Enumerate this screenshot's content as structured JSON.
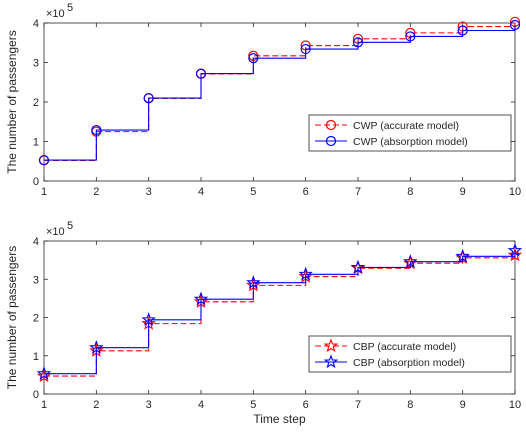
{
  "chart_data": [
    {
      "type": "line",
      "step": true,
      "x": [
        1,
        2,
        3,
        4,
        5,
        6,
        7,
        8,
        9,
        10
      ],
      "xlim": [
        1,
        10
      ],
      "ylim": [
        0,
        4
      ],
      "y_ticks": [
        0,
        1,
        2,
        3,
        4
      ],
      "y_exponent_label": "×10",
      "y_exponent_power": "5",
      "xlabel": "",
      "ylabel": "The number of passengers",
      "grid": false,
      "legend_position": "lower-right",
      "series": [
        {
          "name": "CWP (accurate model)",
          "color": "#ff0000",
          "line_style": "dashed",
          "marker": "circle",
          "values": [
            0.52,
            1.25,
            2.09,
            2.71,
            3.17,
            3.43,
            3.6,
            3.75,
            3.91,
            4.03
          ]
        },
        {
          "name": "CWP (absorption model)",
          "color": "#0000ff",
          "line_style": "solid",
          "marker": "circle",
          "values": [
            0.53,
            1.29,
            2.1,
            2.72,
            3.11,
            3.34,
            3.51,
            3.66,
            3.81,
            3.95
          ]
        }
      ]
    },
    {
      "type": "line",
      "step": true,
      "x": [
        1,
        2,
        3,
        4,
        5,
        6,
        7,
        8,
        9,
        10
      ],
      "xlim": [
        1,
        10
      ],
      "ylim": [
        0,
        4
      ],
      "y_ticks": [
        0,
        1,
        2,
        3,
        4
      ],
      "y_exponent_label": "×10",
      "y_exponent_power": "5",
      "xlabel": "Time step",
      "ylabel": "The number of passengers",
      "grid": false,
      "legend_position": "lower-right",
      "series": [
        {
          "name": "CBP (accurate model)",
          "color": "#ff0000",
          "line_style": "dashed",
          "marker": "star",
          "values": [
            0.47,
            1.13,
            1.84,
            2.41,
            2.84,
            3.07,
            3.29,
            3.42,
            3.56,
            3.63
          ]
        },
        {
          "name": "CBP (absorption model)",
          "color": "#0000ff",
          "line_style": "solid",
          "marker": "star",
          "values": [
            0.53,
            1.21,
            1.94,
            2.48,
            2.91,
            3.13,
            3.31,
            3.46,
            3.6,
            3.75
          ]
        }
      ]
    }
  ]
}
